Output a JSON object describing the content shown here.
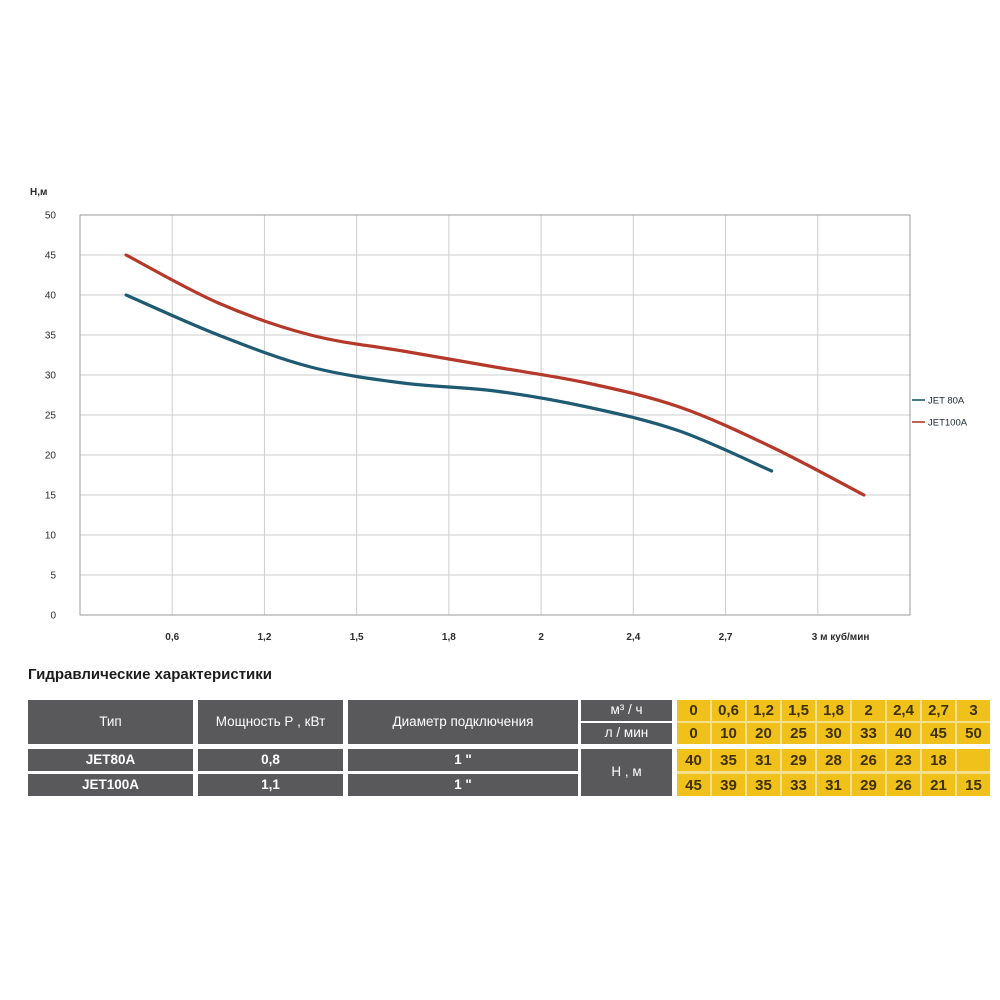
{
  "section_title": "Гидравлические характеристики",
  "chart": {
    "y_axis_title": "Н,м",
    "y_ticks": [
      "0",
      "5",
      "10",
      "15",
      "20",
      "25",
      "30",
      "35",
      "40",
      "45",
      "50"
    ],
    "x_tick_labels": [
      "0,6",
      "1,2",
      "1,5",
      "1,8",
      "2",
      "2,4",
      "2,7"
    ],
    "x_last_tick_label": "3 м куб/мин",
    "legend": [
      {
        "label": "JET 80A",
        "color": "#1f5a73"
      },
      {
        "label": "JET100A",
        "color": "#b5392a"
      }
    ],
    "colors": {
      "grid": "#cdcdcd",
      "border": "#9b9b9b",
      "tick_text": "#2b2b2b",
      "legend_text": "#1d2733"
    }
  },
  "chart_data": {
    "type": "line",
    "categories": [
      0,
      0.6,
      1.2,
      1.5,
      1.8,
      2,
      2.4,
      2.7,
      3
    ],
    "series": [
      {
        "name": "JET 80A",
        "color": "#1f5a73",
        "values": [
          40,
          35,
          31,
          29,
          28,
          26,
          23,
          18,
          null
        ]
      },
      {
        "name": "JET100A",
        "color": "#b5392a",
        "values": [
          45,
          39,
          35,
          33,
          31,
          29,
          26,
          21,
          15
        ]
      }
    ],
    "title": "",
    "xlabel": "м куб/мин",
    "ylabel": "Н,м",
    "ylim": [
      0,
      50
    ],
    "y_step": 5,
    "grid": true,
    "legend_position": "right"
  },
  "table": {
    "headers": {
      "type": "Тип",
      "power": "Мощность Р , кВт",
      "diameter": "Диаметр подключения",
      "flow_m3h": "м³ / ч",
      "flow_lmin": "л / мин",
      "head": "Н , м"
    },
    "flow_m3h_values": [
      "0",
      "0,6",
      "1,2",
      "1,5",
      "1,8",
      "2",
      "2,4",
      "2,7",
      "3"
    ],
    "flow_lmin_values": [
      "0",
      "10",
      "20",
      "25",
      "30",
      "33",
      "40",
      "45",
      "50"
    ],
    "rows": [
      {
        "type": "JET80A",
        "power": "0,8",
        "diameter": "1 \"",
        "head": [
          "40",
          "35",
          "31",
          "29",
          "28",
          "26",
          "23",
          "18",
          ""
        ]
      },
      {
        "type": "JET100A",
        "power": "1,1",
        "diameter": "1 \"",
        "head": [
          "45",
          "39",
          "35",
          "33",
          "31",
          "29",
          "26",
          "21",
          "15"
        ]
      }
    ]
  }
}
